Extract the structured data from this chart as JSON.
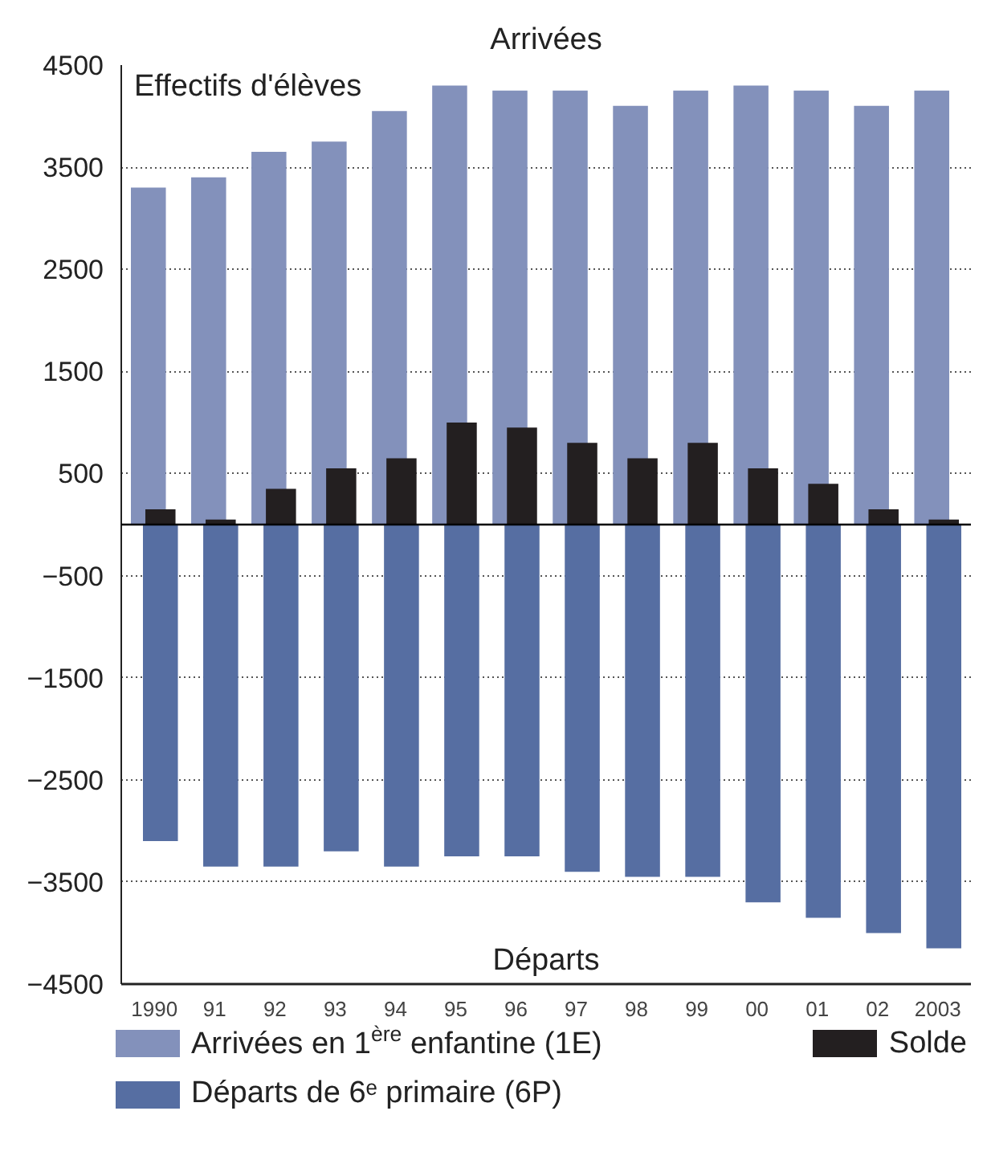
{
  "chart_data": {
    "type": "bar",
    "ylabel": "Effectifs d'élèves",
    "annotations": [
      "Arrivées",
      "Départs"
    ],
    "categories": [
      "1990",
      "91",
      "92",
      "93",
      "94",
      "95",
      "96",
      "97",
      "98",
      "99",
      "00",
      "01",
      "02",
      "2003"
    ],
    "series": [
      {
        "name": "Arrivées en 1$^{ère}$ enfantine (1E)",
        "color": "#8391bb",
        "values": [
          3300,
          3400,
          3650,
          3750,
          4050,
          4300,
          4250,
          4250,
          4100,
          4250,
          4300,
          4250,
          4100,
          4250
        ]
      },
      {
        "name": "Départs de 6ᵉ primaire (6P)",
        "color": "#566ea2",
        "values": [
          -3100,
          -3350,
          -3350,
          -3200,
          -3350,
          -3250,
          -3250,
          -3400,
          -3450,
          -3450,
          -3700,
          -3850,
          -4000,
          -4150
        ]
      },
      {
        "name": "Solde",
        "color": "#231f20",
        "values": [
          150,
          50,
          350,
          550,
          650,
          1000,
          950,
          800,
          650,
          800,
          550,
          400,
          150,
          50
        ]
      }
    ],
    "ylim": [
      -4500,
      4500
    ],
    "yticks": [
      -4500,
      -3500,
      -2500,
      -1500,
      -500,
      500,
      1500,
      2500,
      3500,
      4500
    ],
    "ref_lines": [
      {
        "axis": "y",
        "value": 0,
        "color": "#000000"
      }
    ],
    "grid": "y",
    "legend": "bottom"
  }
}
